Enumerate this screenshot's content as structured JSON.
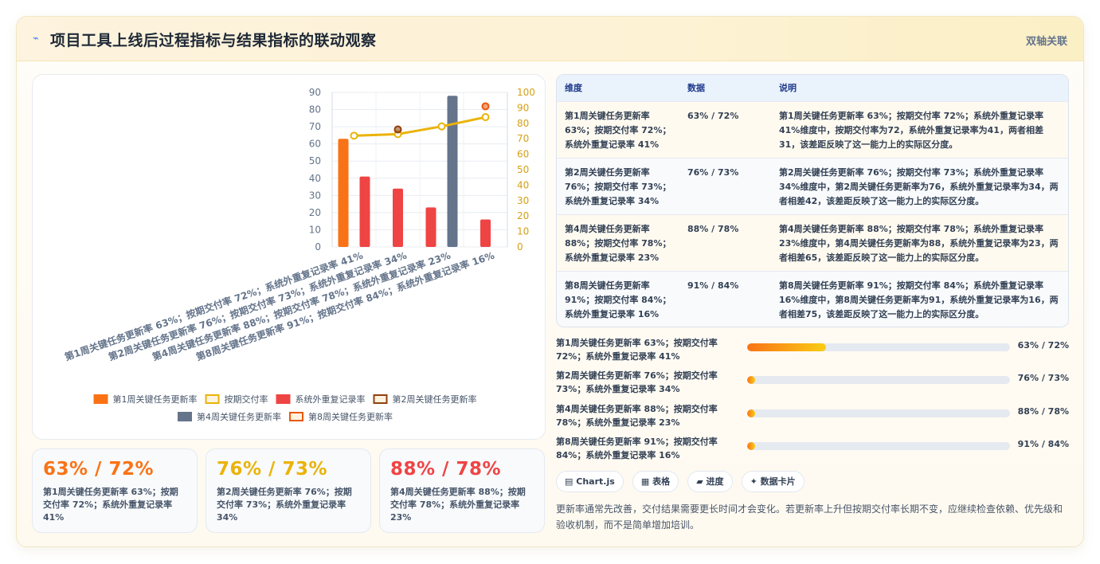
{
  "header": {
    "icon": "⌁",
    "title": "项目工具上线后过程指标与结果指标的联动观察",
    "tag": "双轴关联"
  },
  "chart_data": {
    "type": "bar",
    "categories": [
      "第1周关键任务更新率 63%；按期交付率 72%；系统外重复记录率 41%",
      "第2周关键任务更新率 76%；按期交付率 73%；系统外重复记录率 34%",
      "第4周关键任务更新率 88%；按期交付率 78%；系统外重复记录率 23%",
      "第8周关键任务更新率 91%；按期交付率 84%；系统外重复记录率 16%"
    ],
    "y_left": {
      "min": 0,
      "max": 90,
      "ticks": [
        0,
        10,
        20,
        30,
        40,
        50,
        60,
        70,
        80,
        90
      ]
    },
    "y_right": {
      "min": 0,
      "max": 100,
      "ticks": [
        0,
        10,
        20,
        30,
        40,
        50,
        60,
        70,
        80,
        90,
        100
      ]
    },
    "series": [
      {
        "name": "第1周关键任务更新率",
        "kind": "bar",
        "axis": "left",
        "color": "#f97316",
        "values": [
          63,
          null,
          null,
          null
        ]
      },
      {
        "name": "按期交付率",
        "kind": "line",
        "axis": "right",
        "color": "#eab308",
        "values": [
          72,
          73,
          78,
          84
        ]
      },
      {
        "name": "系统外重复记录率",
        "kind": "bar",
        "axis": "left",
        "color": "#ef4444",
        "values": [
          41,
          34,
          23,
          16
        ]
      },
      {
        "name": "第2周关键任务更新率",
        "kind": "point",
        "axis": "right",
        "color": "#92400e",
        "values": [
          null,
          76,
          null,
          null
        ]
      },
      {
        "name": "第4周关键任务更新率",
        "kind": "bar",
        "axis": "left",
        "color": "#64748b",
        "values": [
          null,
          null,
          88,
          null
        ]
      },
      {
        "name": "第8周关键任务更新率",
        "kind": "point",
        "axis": "right",
        "color": "#ea580c",
        "values": [
          null,
          null,
          null,
          91
        ]
      }
    ],
    "legend": [
      {
        "label": "第1周关键任务更新率",
        "color": "#f97316",
        "style": "fill"
      },
      {
        "label": "按期交付率",
        "color": "#eab308",
        "style": "outline"
      },
      {
        "label": "系统外重复记录率",
        "color": "#ef4444",
        "style": "fill"
      },
      {
        "label": "第2周关键任务更新率",
        "color": "#92400e",
        "style": "outline"
      },
      {
        "label": "第4周关键任务更新率",
        "color": "#64748b",
        "style": "fill"
      },
      {
        "label": "第8周关键任务更新率",
        "color": "#ea580c",
        "style": "outline"
      }
    ],
    "legend_position": "bottom",
    "grid": true
  },
  "stats": [
    {
      "value": "63% / 72%",
      "color": "#f97316",
      "desc": "第1周关键任务更新率 63%；按期交付率 72%；系统外重复记录率 41%"
    },
    {
      "value": "76% / 73%",
      "color": "#eab308",
      "desc": "第2周关键任务更新率 76%；按期交付率 73%；系统外重复记录率 34%"
    },
    {
      "value": "88% / 78%",
      "color": "#ef4444",
      "desc": "第4周关键任务更新率 88%；按期交付率 78%；系统外重复记录率 23%"
    }
  ],
  "table": {
    "headers": [
      "维度",
      "数据",
      "说明"
    ],
    "rows": [
      {
        "dim": "第1周关键任务更新率 63%；按期交付率 72%；系统外重复记录率 41%",
        "data": "63% / 72%",
        "note": "第1周关键任务更新率 63%；按期交付率 72%；系统外重复记录率 41%维度中，按期交付率为72，系统外重复记录率为41，两者相差31，该差距反映了这一能力上的实际区分度。"
      },
      {
        "dim": "第2周关键任务更新率 76%；按期交付率 73%；系统外重复记录率 34%",
        "data": "76% / 73%",
        "note": "第2周关键任务更新率 76%；按期交付率 73%；系统外重复记录率 34%维度中，第2周关键任务更新率为76，系统外重复记录率为34，两者相差42，该差距反映了这一能力上的实际区分度。"
      },
      {
        "dim": "第4周关键任务更新率 88%；按期交付率 78%；系统外重复记录率 23%",
        "data": "88% / 78%",
        "note": "第4周关键任务更新率 88%；按期交付率 78%；系统外重复记录率 23%维度中，第4周关键任务更新率为88，系统外重复记录率为23，两者相差65，该差距反映了这一能力上的实际区分度。"
      },
      {
        "dim": "第8周关键任务更新率 91%；按期交付率 84%；系统外重复记录率 16%",
        "data": "91% / 84%",
        "note": "第8周关键任务更新率 91%；按期交付率 84%；系统外重复记录率 16%维度中，第8周关键任务更新率为91，系统外重复记录率为16，两者相差75，该差距反映了这一能力上的实际区分度。"
      }
    ]
  },
  "progress": [
    {
      "label": "第1周关键任务更新率 63%；按期交付率 72%；系统外重复记录率 41%",
      "value": "63% / 72%",
      "fill": 0.3
    },
    {
      "label": "第2周关键任务更新率 76%；按期交付率 73%；系统外重复记录率 34%",
      "value": "76% / 73%",
      "fill": 0.03
    },
    {
      "label": "第4周关键任务更新率 88%；按期交付率 78%；系统外重复记录率 23%",
      "value": "88% / 78%",
      "fill": 0.03
    },
    {
      "label": "第8周关键任务更新率 91%；按期交付率 84%；系统外重复记录率 16%",
      "value": "91% / 84%",
      "fill": 0.03
    }
  ],
  "chips": [
    {
      "icon": "▤",
      "label": "Chart.js"
    },
    {
      "icon": "▦",
      "label": "表格"
    },
    {
      "icon": "▰",
      "label": "进度"
    },
    {
      "icon": "✦",
      "label": "数据卡片"
    }
  ],
  "note": "更新率通常先改善，交付结果需要更长时间才会变化。若更新率上升但按期交付率长期不变，应继续检查依赖、优先级和验收机制，而不是简单增加培训。"
}
